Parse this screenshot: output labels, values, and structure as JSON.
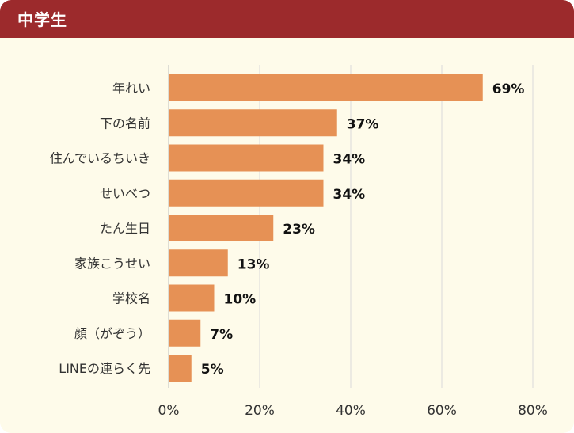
{
  "header": {
    "title": "中学生"
  },
  "colors": {
    "header_bg": "#9c2a2c",
    "panel_bg": "#fefbea",
    "bar": "#e69155",
    "grid": "#d9d9d9"
  },
  "chart_data": {
    "type": "bar",
    "orientation": "horizontal",
    "title": "",
    "xlabel": "",
    "ylabel": "",
    "xlim": [
      0,
      80
    ],
    "ticks": [
      0,
      20,
      40,
      60,
      80
    ],
    "tick_labels": [
      "0%",
      "20%",
      "40%",
      "60%",
      "80%"
    ],
    "grid": true,
    "categories": [
      "年れい",
      "下の名前",
      "住んでいるちいき",
      "せいべつ",
      "たん生日",
      "家族こうせい",
      "学校名",
      "顔（がぞう）",
      "LINEの連らく先"
    ],
    "values": [
      69,
      37,
      34,
      34,
      23,
      13,
      10,
      7,
      5
    ],
    "value_labels": [
      "69%",
      "37%",
      "34%",
      "34%",
      "23%",
      "13%",
      "10%",
      "7%",
      "5%"
    ]
  }
}
